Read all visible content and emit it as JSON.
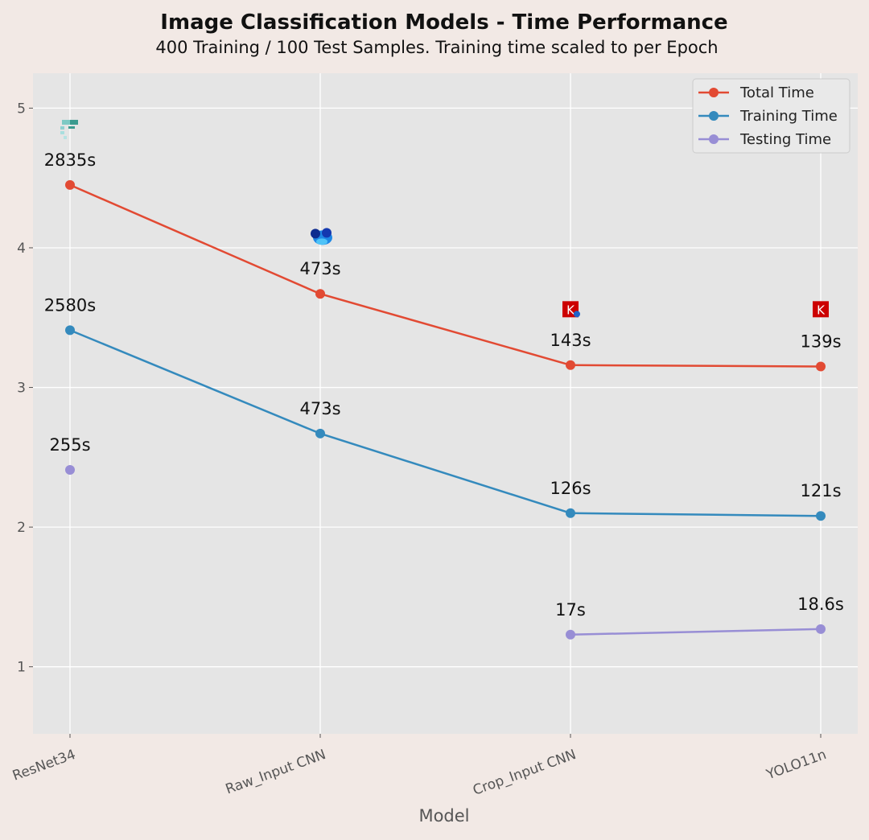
{
  "chart_data": {
    "type": "line",
    "title": "Image Classification Models - Time Performance",
    "subtitle": "400 Training / 100 Test Samples. Training time scaled to per Epoch",
    "xlabel": "Model",
    "ylabel": "",
    "categories": [
      "ResNet34",
      "Raw_Input CNN",
      "Crop_Input CNN",
      "YOLO11n"
    ],
    "ylim": [
      0.52,
      5.25
    ],
    "yticks": [
      "1",
      "2",
      "3",
      "4",
      "5"
    ],
    "grid": true,
    "legend_position": "top-right",
    "series": [
      {
        "name": "Total Time",
        "color": "#e24a33",
        "values": [
          4.45,
          3.67,
          3.16,
          3.15
        ],
        "labels": [
          "2835s",
          "473s",
          "143s",
          "139s"
        ],
        "connected": true
      },
      {
        "name": "Training Time",
        "color": "#348abd",
        "values": [
          3.41,
          2.67,
          2.1,
          2.08
        ],
        "labels": [
          "2580s",
          "473s",
          "126s",
          "121s"
        ],
        "connected": true
      },
      {
        "name": "Testing Time",
        "color": "#988ed5",
        "values": [
          2.41,
          null,
          1.23,
          1.27
        ],
        "labels": [
          "255s",
          "",
          "17s",
          "18.6s"
        ],
        "connected": true
      }
    ],
    "logo_icons": [
      {
        "category": "ResNet34",
        "icon": "pytorch-style-logo-icon",
        "value": 4.87
      },
      {
        "category": "Raw_Input CNN",
        "icon": "cnn-framework-logo-icon",
        "value": 4.09
      },
      {
        "category": "Crop_Input CNN",
        "icon": "keras-logo-icon",
        "value": 3.56
      },
      {
        "category": "YOLO11n",
        "icon": "keras-logo-icon",
        "value": 3.56
      }
    ]
  }
}
